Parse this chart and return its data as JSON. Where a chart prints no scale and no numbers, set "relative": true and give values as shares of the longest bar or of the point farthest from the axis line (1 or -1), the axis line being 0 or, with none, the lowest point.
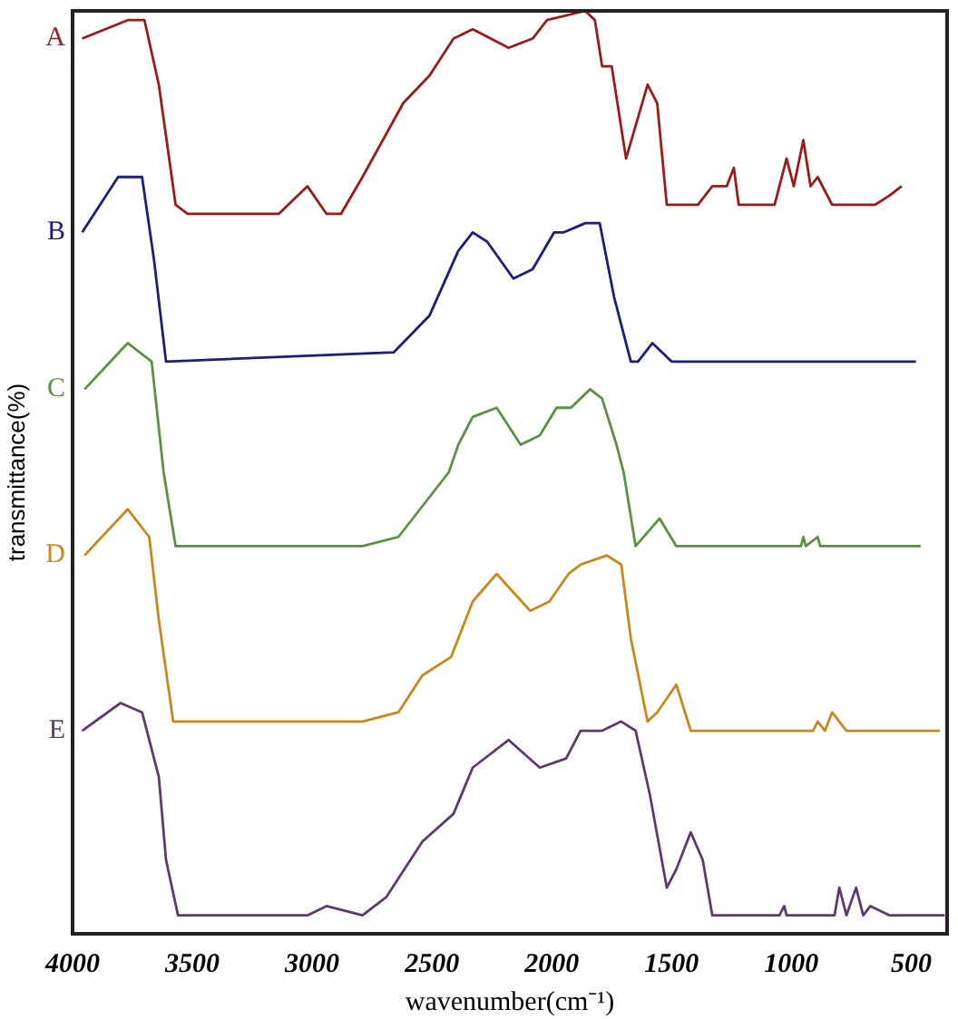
{
  "chart_data": {
    "type": "line",
    "relative": true,
    "xlabel": "wavenumber(cm⁻¹)",
    "ylabel": "transmittance(%)",
    "xlim": [
      4000,
      350
    ],
    "xticks": [
      4000,
      3500,
      3000,
      2500,
      2000,
      1500,
      1000,
      500
    ],
    "grid": false,
    "legend": false,
    "marker": "none",
    "line_style": "solid",
    "series": [
      {
        "name": "A",
        "color": "#9b1b1b",
        "x": [
          3960,
          3770,
          3700,
          3640,
          3570,
          3520,
          3140,
          3020,
          2940,
          2880,
          2790,
          2620,
          2510,
          2410,
          2330,
          2180,
          2080,
          2020,
          1860,
          1820,
          1790,
          1750,
          1690,
          1600,
          1560,
          1520,
          1460,
          1390,
          1330,
          1270,
          1240,
          1220,
          1070,
          1020,
          990,
          950,
          920,
          890,
          830,
          720,
          650,
          590,
          540
        ],
        "values": [
          0.97,
          0.99,
          0.99,
          0.92,
          0.79,
          0.78,
          0.78,
          0.81,
          0.78,
          0.78,
          0.82,
          0.9,
          0.93,
          0.97,
          0.98,
          0.96,
          0.97,
          0.99,
          1.0,
          0.99,
          0.94,
          0.94,
          0.84,
          0.92,
          0.9,
          0.79,
          0.79,
          0.79,
          0.81,
          0.81,
          0.83,
          0.79,
          0.79,
          0.84,
          0.81,
          0.86,
          0.81,
          0.82,
          0.79,
          0.79,
          0.79,
          0.8,
          0.81
        ]
      },
      {
        "name": "B",
        "color": "#1a1f7a",
        "x": [
          3960,
          3810,
          3710,
          3660,
          3610,
          2660,
          2510,
          2390,
          2330,
          2270,
          2160,
          2080,
          1990,
          1950,
          1860,
          1800,
          1740,
          1670,
          1640,
          1580,
          1500,
          480
        ],
        "values": [
          0.76,
          0.82,
          0.82,
          0.73,
          0.62,
          0.63,
          0.67,
          0.74,
          0.76,
          0.75,
          0.71,
          0.72,
          0.76,
          0.76,
          0.77,
          0.77,
          0.69,
          0.62,
          0.62,
          0.64,
          0.62,
          0.62
        ]
      },
      {
        "name": "C",
        "color": "#5b9140",
        "x": [
          3950,
          3770,
          3670,
          3620,
          3570,
          2790,
          2640,
          2430,
          2390,
          2330,
          2230,
          2130,
          2050,
          1980,
          1920,
          1840,
          1790,
          1730,
          1700,
          1650,
          1550,
          1480,
          960,
          950,
          940,
          890,
          880,
          460
        ],
        "values": [
          0.59,
          0.64,
          0.62,
          0.5,
          0.42,
          0.42,
          0.43,
          0.5,
          0.53,
          0.56,
          0.57,
          0.53,
          0.54,
          0.57,
          0.57,
          0.59,
          0.58,
          0.53,
          0.5,
          0.42,
          0.45,
          0.42,
          0.42,
          0.43,
          0.42,
          0.43,
          0.42,
          0.42
        ]
      },
      {
        "name": "D",
        "color": "#c8891c",
        "x": [
          3950,
          3770,
          3680,
          3640,
          3580,
          2790,
          2640,
          2540,
          2420,
          2330,
          2230,
          2090,
          2010,
          1930,
          1880,
          1770,
          1710,
          1670,
          1600,
          1560,
          1480,
          1420,
          910,
          890,
          860,
          830,
          770,
          380
        ],
        "values": [
          0.41,
          0.46,
          0.43,
          0.34,
          0.23,
          0.23,
          0.24,
          0.28,
          0.3,
          0.36,
          0.39,
          0.35,
          0.36,
          0.39,
          0.4,
          0.41,
          0.4,
          0.32,
          0.23,
          0.24,
          0.27,
          0.22,
          0.22,
          0.23,
          0.22,
          0.24,
          0.22,
          0.22
        ]
      },
      {
        "name": "E",
        "color": "#5e3a6e",
        "x": [
          3960,
          3800,
          3710,
          3640,
          3610,
          3560,
          3020,
          2940,
          2790,
          2690,
          2540,
          2410,
          2330,
          2180,
          2050,
          1940,
          1880,
          1790,
          1710,
          1650,
          1590,
          1520,
          1480,
          1420,
          1370,
          1330,
          1140,
          1050,
          1030,
          1020,
          820,
          800,
          770,
          730,
          700,
          670,
          590,
          360
        ],
        "values": [
          0.22,
          0.25,
          0.24,
          0.17,
          0.08,
          0.02,
          0.02,
          0.03,
          0.02,
          0.04,
          0.1,
          0.13,
          0.18,
          0.21,
          0.18,
          0.19,
          0.22,
          0.22,
          0.23,
          0.22,
          0.15,
          0.05,
          0.07,
          0.11,
          0.08,
          0.02,
          0.02,
          0.02,
          0.03,
          0.02,
          0.02,
          0.05,
          0.02,
          0.05,
          0.02,
          0.03,
          0.02,
          0.02
        ]
      }
    ]
  }
}
